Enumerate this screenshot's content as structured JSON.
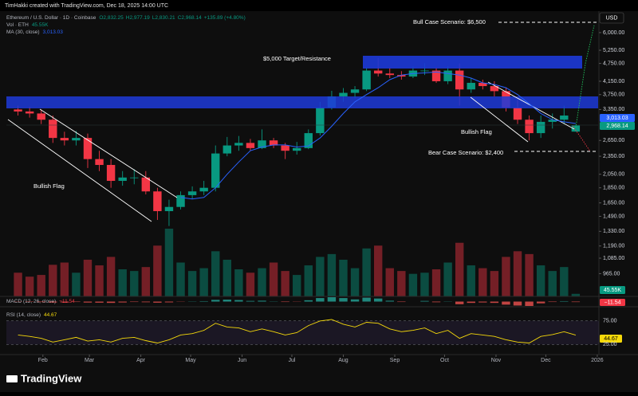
{
  "watermark": "TimHakki created with TradingView.com, Dec 18, 2025 14:00 UTC",
  "legend": {
    "symbol": "Ethereum / U.S. Dollar · 1D · Coinbase",
    "ohlc": [
      [
        "O",
        "2,832.25"
      ],
      [
        "H",
        "2,977.19"
      ],
      [
        "L",
        "2,830.21"
      ],
      [
        "C",
        "2,968.14"
      ]
    ],
    "change": "+135.89 (+4.80%)",
    "volume_name": "Vol · ETH",
    "volume_value": "45.55K",
    "ma_name": "MA (30, close)",
    "ma_value": "3,013.03",
    "macd_name": "MACD (12, 26, close)",
    "macd_value": "−11.54",
    "rsi_name": "RSI (14, close)",
    "rsi_value": "44.67"
  },
  "logo": "TradingView",
  "chart_data": {
    "type": "candlestick",
    "currency": "USD",
    "log_scale": true,
    "grid": false,
    "up_color": "#089981",
    "down_color": "#f23645",
    "ma_color": "#2962ff",
    "xlim": [
      9,
      366
    ],
    "xticks": [
      {
        "value": 31,
        "label": "Feb"
      },
      {
        "value": 59,
        "label": "Mar"
      },
      {
        "value": 90,
        "label": "Apr"
      },
      {
        "value": 120,
        "label": "May"
      },
      {
        "value": 151,
        "label": "Jun"
      },
      {
        "value": 181,
        "label": "Jul"
      },
      {
        "value": 212,
        "label": "Aug"
      },
      {
        "value": 243,
        "label": "Sep"
      },
      {
        "value": 273,
        "label": "Oct"
      },
      {
        "value": 304,
        "label": "Nov"
      },
      {
        "value": 334,
        "label": "Dec"
      },
      {
        "value": 365,
        "label": "2026"
      }
    ],
    "ylim": [
      812,
      7060
    ],
    "yticks": [
      {
        "value": 6000,
        "label": "6,000.00"
      },
      {
        "value": 5250,
        "label": "5,250.00"
      },
      {
        "value": 4750,
        "label": "4,750.00"
      },
      {
        "value": 4150,
        "label": "4,150.00"
      },
      {
        "value": 3750,
        "label": "3,750.00"
      },
      {
        "value": 3350,
        "label": "3,350.00"
      },
      {
        "value": 2650,
        "label": "2,650.00"
      },
      {
        "value": 2350,
        "label": "2,350.00"
      },
      {
        "value": 2050,
        "label": "2,050.00"
      },
      {
        "value": 1850,
        "label": "1,850.00"
      },
      {
        "value": 1650,
        "label": "1,650.00"
      },
      {
        "value": 1490,
        "label": "1,490.00"
      },
      {
        "value": 1330,
        "label": "1,330.00"
      },
      {
        "value": 1190,
        "label": "1,190.00"
      },
      {
        "value": 1085,
        "label": "1,085.00"
      },
      {
        "value": 965,
        "label": "965.00"
      }
    ],
    "x": [
      16,
      23,
      30,
      37,
      44,
      51,
      58,
      65,
      72,
      79,
      86,
      93,
      100,
      107,
      114,
      121,
      128,
      135,
      142,
      149,
      156,
      163,
      170,
      177,
      184,
      191,
      198,
      205,
      212,
      219,
      226,
      233,
      240,
      247,
      254,
      261,
      268,
      275,
      282,
      289,
      296,
      303,
      310,
      317,
      324,
      331,
      338,
      345,
      352
    ],
    "open": [
      3350,
      3300,
      3250,
      3100,
      2700,
      2650,
      2700,
      2300,
      2200,
      1950,
      2000,
      2000,
      1800,
      1550,
      1600,
      1750,
      1800,
      1850,
      2400,
      2550,
      2600,
      2500,
      2650,
      2550,
      2450,
      2500,
      2800,
      3400,
      3700,
      3800,
      3900,
      4500,
      4400,
      4350,
      4300,
      4500,
      4500,
      4150,
      4500,
      3900,
      4100,
      4000,
      3850,
      3400,
      3100,
      2800,
      3050,
      3100,
      2832.25
    ],
    "high": [
      3450,
      3420,
      3350,
      3200,
      2830,
      2850,
      2790,
      2450,
      2300,
      2100,
      2130,
      2100,
      1850,
      1690,
      1800,
      1870,
      1950,
      2550,
      2720,
      2740,
      2680,
      2880,
      2700,
      2600,
      2620,
      2880,
      3550,
      3860,
      3940,
      4000,
      4600,
      4950,
      4600,
      4480,
      4650,
      4760,
      4600,
      4650,
      4750,
      4250,
      4200,
      4150,
      3950,
      3600,
      3200,
      3200,
      3250,
      3450,
      2977.19
    ],
    "low": [
      3200,
      3150,
      3000,
      2600,
      2550,
      2550,
      2150,
      2100,
      1850,
      1880,
      1900,
      1760,
      1450,
      1385,
      1570,
      1700,
      1750,
      1800,
      2350,
      2450,
      2450,
      2480,
      2500,
      2300,
      2380,
      2480,
      2750,
      3350,
      3550,
      3650,
      3850,
      4300,
      4250,
      4200,
      4250,
      4350,
      4100,
      4060,
      3450,
      3800,
      3900,
      3700,
      3300,
      3000,
      2650,
      2700,
      2900,
      3000,
      2830.21
    ],
    "close": [
      3300,
      3250,
      3100,
      2700,
      2650,
      2700,
      2300,
      2200,
      1950,
      2000,
      2000,
      1800,
      1550,
      1600,
      1750,
      1800,
      1850,
      2400,
      2550,
      2600,
      2500,
      2650,
      2550,
      2450,
      2500,
      2800,
      3400,
      3700,
      3800,
      3900,
      4500,
      4400,
      4350,
      4300,
      4500,
      4500,
      4150,
      4500,
      3900,
      4100,
      4000,
      3850,
      3400,
      3100,
      2800,
      3050,
      3100,
      3200,
      2968.14
    ],
    "ma": [
      null,
      null,
      null,
      null,
      null,
      null,
      null,
      null,
      null,
      null,
      null,
      null,
      null,
      null,
      1720,
      1700,
      1720,
      1850,
      2050,
      2250,
      2450,
      2520,
      2560,
      2560,
      2520,
      2540,
      2700,
      2950,
      3250,
      3550,
      3750,
      3950,
      4200,
      4350,
      4400,
      4420,
      4450,
      4400,
      4350,
      4250,
      4100,
      4050,
      3950,
      3750,
      3500,
      3250,
      3100,
      3050,
      3013.03
    ],
    "volume": [
      420,
      350,
      380,
      560,
      600,
      420,
      650,
      550,
      700,
      480,
      450,
      520,
      900,
      1200,
      600,
      450,
      500,
      800,
      650,
      480,
      420,
      500,
      600,
      450,
      380,
      550,
      700,
      750,
      650,
      500,
      850,
      900,
      500,
      450,
      400,
      420,
      480,
      600,
      950,
      550,
      500,
      450,
      700,
      800,
      750,
      550,
      450,
      520,
      45.55
    ],
    "macd": [
      -5,
      -8,
      -12,
      -20,
      -18,
      -10,
      -22,
      -25,
      -30,
      -20,
      -10,
      -15,
      -25,
      -18,
      -5,
      5,
      10,
      40,
      45,
      35,
      15,
      20,
      5,
      -10,
      -5,
      30,
      80,
      100,
      80,
      50,
      90,
      70,
      20,
      -10,
      0,
      15,
      -15,
      5,
      -60,
      -30,
      -20,
      -30,
      -70,
      -90,
      -100,
      -40,
      -10,
      10,
      -11.54
    ],
    "rsi": [
      45,
      42,
      38,
      30,
      35,
      40,
      32,
      35,
      30,
      38,
      40,
      33,
      28,
      35,
      45,
      48,
      55,
      70,
      62,
      60,
      52,
      58,
      52,
      45,
      50,
      65,
      75,
      78,
      68,
      62,
      72,
      70,
      58,
      52,
      55,
      60,
      48,
      55,
      38,
      48,
      45,
      42,
      35,
      30,
      28,
      42,
      46,
      52,
      44.67
    ],
    "rsi_ylim": [
      0,
      100
    ],
    "rsi_yticks": [
      {
        "value": 75,
        "label": "75.00"
      },
      {
        "value": 25,
        "label": "25.00"
      }
    ],
    "annotations": [
      {
        "text": "Bull Case Scenario: $6,500"
      },
      {
        "text": "$5,000 Target/Resistance"
      },
      {
        "text": "Bullish Flag"
      },
      {
        "text": "Bullish Flag"
      },
      {
        "text": "Bear Case Scenario: $2,400"
      }
    ]
  }
}
